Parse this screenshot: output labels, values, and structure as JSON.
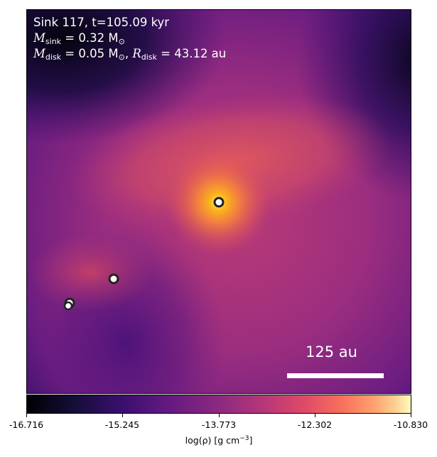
{
  "overlay": {
    "line1": "Sink 117, t=105.09 kyr",
    "mass_label": "M",
    "mass_sub": "sink",
    "mass_value": " = 0.32 M",
    "mass_unit_sub": "⊙",
    "disk_label": "M",
    "disk_sub": "disk",
    "disk_mass_value": " = 0.05 M",
    "disk_unit_sub": "⊙",
    "disk_sep": ", ",
    "radius_label": "R",
    "radius_sub": "disk",
    "radius_value": " = 43.12 au"
  },
  "scale_bar": {
    "label": "125 au"
  },
  "colorbar": {
    "ticks": [
      "-16.716",
      "-15.245",
      "-13.773",
      "-12.302",
      "-10.830"
    ],
    "label_prefix": "log(ρ) [g cm",
    "label_exp": "−3",
    "label_suffix": "]",
    "colormap": "inferno"
  },
  "sinks": [
    {
      "name": "sink-main"
    },
    {
      "name": "sink-2"
    },
    {
      "name": "sink-3"
    },
    {
      "name": "sink-4"
    }
  ]
}
